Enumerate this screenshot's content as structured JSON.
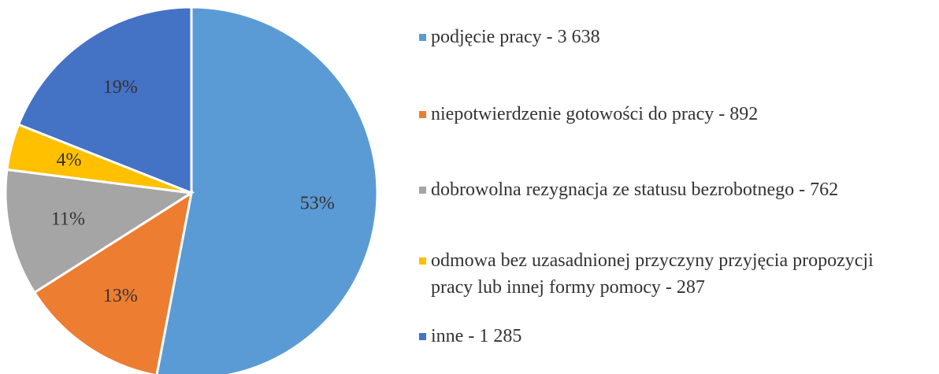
{
  "chart_data": {
    "type": "pie",
    "categories": [
      "podjęcie pracy - 3 638",
      "niepotwierdzenie gotowości do pracy - 892",
      "dobrowolna rezygnacja ze statusu bezrobotnego - 762",
      "odmowa bez uzasadnionej przyczyny przyjęcia propozycji pracy lub innej formy pomocy - 287",
      "inne - 1 285"
    ],
    "values": [
      53,
      13,
      11,
      4,
      19
    ],
    "value_labels": [
      "53%",
      "13%",
      "11%",
      "4%",
      "19%"
    ],
    "colors": [
      "#5b9bd5",
      "#ed7d31",
      "#a5a5a5",
      "#ffc000",
      "#4472c4"
    ],
    "legend": "right"
  }
}
